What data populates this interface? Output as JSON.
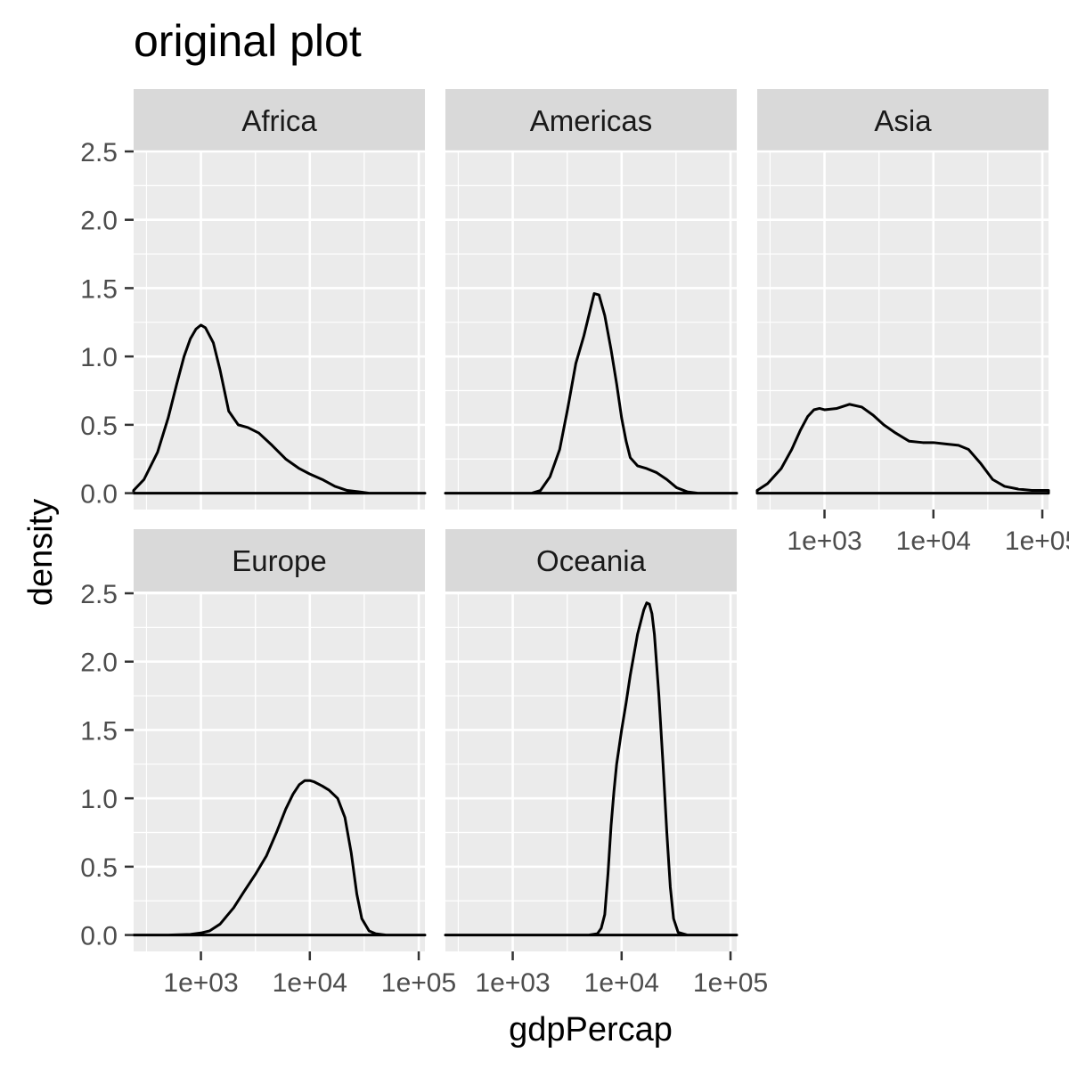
{
  "chart_data": {
    "type": "line",
    "title": "original plot",
    "xlabel": "gdpPercap",
    "ylabel": "density",
    "x_scale": "log10",
    "xlim": [
      241,
      114000
    ],
    "ylim": [
      -0.12,
      2.5
    ],
    "x_ticks": [
      1000,
      10000,
      100000
    ],
    "x_tick_labels": [
      "1e+03",
      "1e+04",
      "1e+05"
    ],
    "y_ticks": [
      0,
      0.5,
      1,
      1.5,
      2,
      2.5
    ],
    "y_tick_labels": [
      "0.0",
      "0.5",
      "1.0",
      "1.5",
      "2.0",
      "2.5"
    ],
    "grid": true,
    "colors": {
      "panel_background": "#EBEBEB",
      "strip_background": "#D9D9D9",
      "grid": "#FFFFFF",
      "line": "#000000"
    },
    "series": [
      {
        "name": "Africa",
        "x": [
          241,
          300,
          400,
          500,
          600,
          700,
          800,
          900,
          1000,
          1100,
          1300,
          1500,
          1800,
          2200,
          2700,
          3400,
          4500,
          6000,
          8000,
          10000,
          13000,
          17000,
          22000,
          28000,
          35000,
          45000,
          60000,
          80000,
          114000
        ],
        "density": [
          0.02,
          0.1,
          0.3,
          0.55,
          0.8,
          1.0,
          1.13,
          1.2,
          1.23,
          1.21,
          1.1,
          0.9,
          0.6,
          0.5,
          0.48,
          0.44,
          0.35,
          0.25,
          0.18,
          0.14,
          0.1,
          0.05,
          0.02,
          0.01,
          0,
          0,
          0,
          0,
          0
        ]
      },
      {
        "name": "Americas",
        "x": [
          241,
          1000,
          1500,
          1800,
          2200,
          2700,
          3200,
          3800,
          4500,
          5000,
          5600,
          6200,
          7000,
          8000,
          9000,
          10000,
          11000,
          12000,
          14000,
          17000,
          21000,
          26000,
          32000,
          40000,
          50000,
          60000,
          80000,
          114000
        ],
        "density": [
          0,
          0,
          0,
          0.02,
          0.12,
          0.32,
          0.62,
          0.95,
          1.15,
          1.3,
          1.46,
          1.45,
          1.3,
          1.05,
          0.8,
          0.55,
          0.38,
          0.26,
          0.2,
          0.18,
          0.15,
          0.1,
          0.04,
          0.01,
          0,
          0,
          0,
          0
        ]
      },
      {
        "name": "Asia",
        "x": [
          241,
          300,
          400,
          500,
          600,
          700,
          800,
          900,
          1000,
          1300,
          1700,
          2200,
          2800,
          3500,
          4500,
          6000,
          8000,
          10000,
          13000,
          17000,
          21000,
          27000,
          35000,
          45000,
          60000,
          80000,
          114000
        ],
        "density": [
          0.02,
          0.07,
          0.18,
          0.32,
          0.46,
          0.56,
          0.61,
          0.62,
          0.61,
          0.62,
          0.65,
          0.63,
          0.57,
          0.5,
          0.44,
          0.38,
          0.37,
          0.37,
          0.36,
          0.35,
          0.32,
          0.22,
          0.1,
          0.05,
          0.03,
          0.02,
          0.02
        ]
      },
      {
        "name": "Europe",
        "x": [
          241,
          500,
          800,
          1000,
          1200,
          1500,
          2000,
          2500,
          3200,
          4000,
          5000,
          6000,
          7000,
          8000,
          9000,
          10000,
          11000,
          13000,
          15000,
          18000,
          21000,
          24000,
          27000,
          30000,
          35000,
          40000,
          50000,
          60000,
          80000,
          114000
        ],
        "density": [
          0,
          0,
          0.005,
          0.015,
          0.03,
          0.08,
          0.2,
          0.32,
          0.45,
          0.58,
          0.76,
          0.92,
          1.03,
          1.1,
          1.13,
          1.13,
          1.12,
          1.09,
          1.06,
          1.0,
          0.86,
          0.6,
          0.3,
          0.12,
          0.03,
          0.01,
          0,
          0,
          0,
          0
        ]
      },
      {
        "name": "Oceania",
        "x": [
          241,
          5000,
          6000,
          6500,
          7000,
          7500,
          8000,
          8500,
          9000,
          10000,
          11000,
          12000,
          14000,
          16000,
          17000,
          18000,
          19000,
          20000,
          22000,
          24000,
          26000,
          28000,
          30000,
          33000,
          40000,
          60000,
          114000
        ],
        "density": [
          0,
          0,
          0.01,
          0.05,
          0.15,
          0.45,
          0.8,
          1.05,
          1.25,
          1.5,
          1.7,
          1.9,
          2.2,
          2.38,
          2.43,
          2.42,
          2.35,
          2.2,
          1.75,
          1.25,
          0.75,
          0.35,
          0.12,
          0.02,
          0,
          0,
          0
        ]
      }
    ]
  }
}
